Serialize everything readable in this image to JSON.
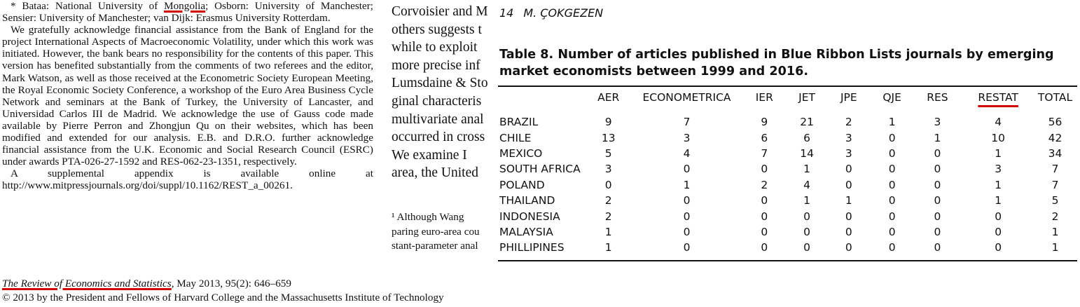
{
  "footnotes": {
    "affiliation": {
      "part1": "* Bataa: National University of ",
      "mongolia": "Mongolia",
      "part2": "; Osborn: University of Manchester; Sensier: University of Manchester; van Dijk: Erasmus University Rotterdam."
    },
    "acknowledgement": "We gratefully acknowledge financial assistance from the Bank of England for the project International Aspects of Macroeconomic Volatility, under which this work was initiated. However, the bank bears no responsibility for the contents of this paper. This version has benefited substantially from the comments of two referees and the editor, Mark Watson, as well as those received at the Econometric Society European Meeting, the Royal Economic Society Conference, a workshop of the Euro Area Business Cycle Network and seminars at the Bank of Turkey, the University of Lancaster, and Universidad Carlos III de Madrid. We acknowledge the use of Gauss code made available by Pierre Perron and Zhongjun Qu on their websites, which has been modified and extended for our analysis. E.B. and D.R.O. further acknowledge financial assistance from the U.K. Economic and Social Research Council (ESRC) under awards PTA-026-27-1592 and RES-062-23-1351, respectively.",
    "supplement": "A supplemental appendix is available online at http://www.mitpressjournals.org/doi/suppl/10.1162/REST_a_00261."
  },
  "body_text": {
    "lines": [
      "Corvoisier and M",
      "others suggests t",
      "while to exploit",
      "more precise inf",
      "Lumsdaine & Sto",
      "ginal characteris",
      "multivariate anal",
      "occurred in cross",
      "   We examine I",
      "area, the United"
    ],
    "footnote_lines": [
      "   ¹ Although Wang",
      "paring euro-area cou",
      "stant-parameter anal"
    ]
  },
  "journal": {
    "title": "The Review of Economics and Statistics",
    "issue": ", May 2013, 95(2): 646–659",
    "copyright": "© 2013 by the President and Fellows of Harvard College and the Massachusetts Institute of Technology"
  },
  "overlay": {
    "page_number": "14",
    "author": "M. ÇOKGEZEN",
    "caption": "Table 8.  Number of articles published in Blue Ribbon Lists journals by emerging market economists between 1999 and 2016."
  },
  "table": {
    "headers": [
      "",
      "AER",
      "ECONOMETRICA",
      "IER",
      "JET",
      "JPE",
      "QJE",
      "RES",
      "RESTAT",
      "TOTAL"
    ],
    "rows": [
      [
        "BRAZIL",
        "9",
        "7",
        "9",
        "21",
        "2",
        "1",
        "3",
        "4",
        "56"
      ],
      [
        "CHILE",
        "13",
        "3",
        "6",
        "6",
        "3",
        "0",
        "1",
        "10",
        "42"
      ],
      [
        "MEXICO",
        "5",
        "4",
        "7",
        "14",
        "3",
        "0",
        "0",
        "1",
        "34"
      ],
      [
        "SOUTH AFRICA",
        "3",
        "0",
        "0",
        "1",
        "0",
        "0",
        "0",
        "3",
        "7"
      ],
      [
        "POLAND",
        "0",
        "1",
        "2",
        "4",
        "0",
        "0",
        "0",
        "1",
        "7"
      ],
      [
        "THAILAND",
        "2",
        "0",
        "0",
        "1",
        "1",
        "0",
        "0",
        "1",
        "5"
      ],
      [
        "INDONESIA",
        "2",
        "0",
        "0",
        "0",
        "0",
        "0",
        "0",
        "0",
        "2"
      ],
      [
        "MALAYSIA",
        "1",
        "0",
        "0",
        "0",
        "0",
        "0",
        "0",
        "0",
        "1"
      ],
      [
        "PHILLIPINES",
        "1",
        "0",
        "0",
        "0",
        "0",
        "0",
        "0",
        "0",
        "1"
      ]
    ]
  },
  "colors": {
    "highlight_underline": "#d40000",
    "text": "#111111"
  }
}
